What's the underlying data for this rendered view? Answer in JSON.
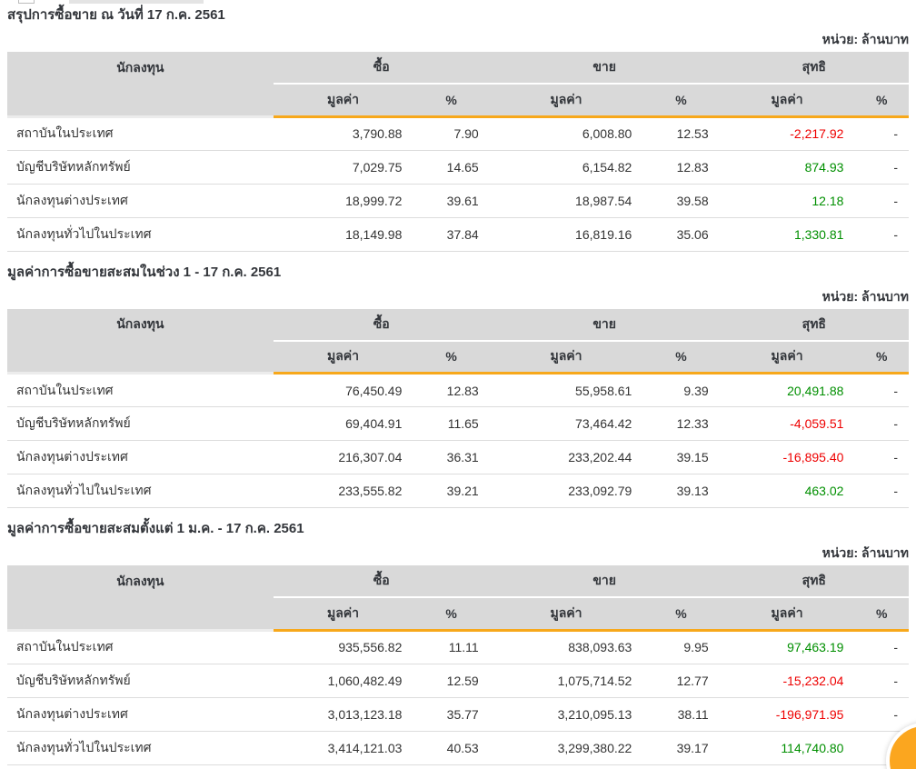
{
  "unit_label": "หน่วย: ล้านบาท",
  "header": {
    "investor": "นักลงทุน",
    "buy": "ซื้อ",
    "sell": "ขาย",
    "net": "สุทธิ",
    "value": "มูลค่า",
    "percent": "%"
  },
  "colors": {
    "accent_orange": "#F7A81B",
    "header_bg": "#D9D9D9",
    "positive_green": "#008F00",
    "negative_red": "#EE0000",
    "fab_orange": "#FBA61F"
  },
  "tables": [
    {
      "title": "สรุปการซื้อขาย ณ วันที่ 17 ก.ค. 2561",
      "rows": [
        {
          "investor": "สถาบันในประเทศ",
          "buy_value": "3,790.88",
          "buy_pct": "7.90",
          "sell_value": "6,008.80",
          "sell_pct": "12.53",
          "net_value": "-2,217.92",
          "net_class": "neg",
          "net_pct": "-"
        },
        {
          "investor": "บัญชีบริษัทหลักทรัพย์",
          "buy_value": "7,029.75",
          "buy_pct": "14.65",
          "sell_value": "6,154.82",
          "sell_pct": "12.83",
          "net_value": "874.93",
          "net_class": "pos",
          "net_pct": "-"
        },
        {
          "investor": "นักลงทุนต่างประเทศ",
          "buy_value": "18,999.72",
          "buy_pct": "39.61",
          "sell_value": "18,987.54",
          "sell_pct": "39.58",
          "net_value": "12.18",
          "net_class": "pos",
          "net_pct": "-"
        },
        {
          "investor": "นักลงทุนทั่วไปในประเทศ",
          "buy_value": "18,149.98",
          "buy_pct": "37.84",
          "sell_value": "16,819.16",
          "sell_pct": "35.06",
          "net_value": "1,330.81",
          "net_class": "pos",
          "net_pct": "-"
        }
      ]
    },
    {
      "title": "มูลค่าการซื้อขายสะสมในช่วง 1 - 17 ก.ค. 2561",
      "rows": [
        {
          "investor": "สถาบันในประเทศ",
          "buy_value": "76,450.49",
          "buy_pct": "12.83",
          "sell_value": "55,958.61",
          "sell_pct": "9.39",
          "net_value": "20,491.88",
          "net_class": "pos",
          "net_pct": "-"
        },
        {
          "investor": "บัญชีบริษัทหลักทรัพย์",
          "buy_value": "69,404.91",
          "buy_pct": "11.65",
          "sell_value": "73,464.42",
          "sell_pct": "12.33",
          "net_value": "-4,059.51",
          "net_class": "neg",
          "net_pct": "-"
        },
        {
          "investor": "นักลงทุนต่างประเทศ",
          "buy_value": "216,307.04",
          "buy_pct": "36.31",
          "sell_value": "233,202.44",
          "sell_pct": "39.15",
          "net_value": "-16,895.40",
          "net_class": "neg",
          "net_pct": "-"
        },
        {
          "investor": "นักลงทุนทั่วไปในประเทศ",
          "buy_value": "233,555.82",
          "buy_pct": "39.21",
          "sell_value": "233,092.79",
          "sell_pct": "39.13",
          "net_value": "463.02",
          "net_class": "pos",
          "net_pct": "-"
        }
      ]
    },
    {
      "title": "มูลค่าการซื้อขายสะสมตั้งแต่ 1 ม.ค. - 17 ก.ค. 2561",
      "rows": [
        {
          "investor": "สถาบันในประเทศ",
          "buy_value": "935,556.82",
          "buy_pct": "11.11",
          "sell_value": "838,093.63",
          "sell_pct": "9.95",
          "net_value": "97,463.19",
          "net_class": "pos",
          "net_pct": "-"
        },
        {
          "investor": "บัญชีบริษัทหลักทรัพย์",
          "buy_value": "1,060,482.49",
          "buy_pct": "12.59",
          "sell_value": "1,075,714.52",
          "sell_pct": "12.77",
          "net_value": "-15,232.04",
          "net_class": "neg",
          "net_pct": "-"
        },
        {
          "investor": "นักลงทุนต่างประเทศ",
          "buy_value": "3,013,123.18",
          "buy_pct": "35.77",
          "sell_value": "3,210,095.13",
          "sell_pct": "38.11",
          "net_value": "-196,971.95",
          "net_class": "neg",
          "net_pct": "-"
        },
        {
          "investor": "นักลงทุนทั่วไปในประเทศ",
          "buy_value": "3,414,121.03",
          "buy_pct": "40.53",
          "sell_value": "3,299,380.22",
          "sell_pct": "39.17",
          "net_value": "114,740.80",
          "net_class": "pos",
          "net_pct": "-"
        }
      ]
    }
  ]
}
